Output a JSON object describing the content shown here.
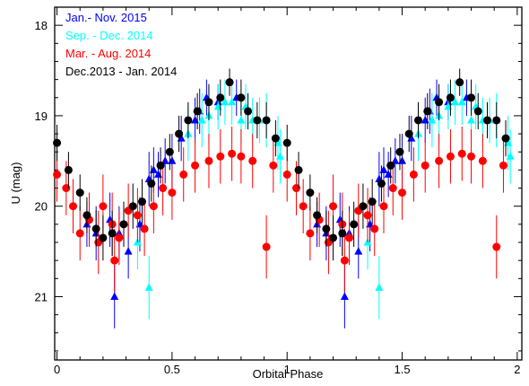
{
  "chart_data": {
    "type": "scatter",
    "xlabel": "Orbital Phase",
    "ylabel": "U (mag)",
    "xlim": [
      -0.01,
      2.02
    ],
    "ylim": [
      21.7,
      17.8
    ],
    "y_inverted": true,
    "x_ticks": [
      0,
      0.5,
      1,
      1.5,
      2
    ],
    "x_tick_labels": [
      "0",
      "0.5",
      "1",
      "1.5",
      "2"
    ],
    "y_ticks": [
      18,
      19,
      20,
      21
    ],
    "y_tick_labels": [
      "18",
      "19",
      "20",
      "21"
    ],
    "legend_position": "top-left",
    "series": [
      {
        "name": "Jan.- Nov. 2015",
        "color": "#0000ff",
        "marker": "triangle",
        "points": [
          {
            "x": 0.13,
            "y": 20.2,
            "err": 0.25
          },
          {
            "x": 0.17,
            "y": 20.3,
            "err": 0.3
          },
          {
            "x": 0.23,
            "y": 20.15,
            "err": 0.3
          },
          {
            "x": 0.25,
            "y": 21.0,
            "err": 0.35
          },
          {
            "x": 0.27,
            "y": 20.3,
            "err": 0.3
          },
          {
            "x": 0.31,
            "y": 20.5,
            "err": 0.3
          },
          {
            "x": 0.36,
            "y": 20.2,
            "err": 0.3
          },
          {
            "x": 0.4,
            "y": 19.7,
            "err": 0.3
          },
          {
            "x": 0.42,
            "y": 19.6,
            "err": 0.25
          },
          {
            "x": 0.44,
            "y": 19.65,
            "err": 0.25
          },
          {
            "x": 0.47,
            "y": 19.5,
            "err": 0.25
          },
          {
            "x": 0.5,
            "y": 19.5,
            "err": 0.3
          },
          {
            "x": 0.54,
            "y": 19.25,
            "err": 0.25
          },
          {
            "x": 0.6,
            "y": 19.05,
            "err": 0.25
          },
          {
            "x": 0.62,
            "y": 18.95,
            "err": 0.25
          },
          {
            "x": 0.65,
            "y": 18.8,
            "err": 0.2
          },
          {
            "x": 0.7,
            "y": 18.85,
            "err": 0.2
          },
          {
            "x": 0.78,
            "y": 18.8,
            "err": 0.2
          }
        ]
      },
      {
        "name": "Sep. - Dec. 2014",
        "color": "#00ffff",
        "marker": "triangle",
        "points": [
          {
            "x": 0.35,
            "y": 20.4,
            "err": 0.3
          },
          {
            "x": 0.4,
            "y": 20.9,
            "err": 0.35
          },
          {
            "x": 0.57,
            "y": 19.2,
            "err": 0.3
          },
          {
            "x": 0.63,
            "y": 19.05,
            "err": 0.3
          },
          {
            "x": 0.66,
            "y": 19.0,
            "err": 0.3
          },
          {
            "x": 0.7,
            "y": 18.9,
            "err": 0.25
          },
          {
            "x": 0.73,
            "y": 18.85,
            "err": 0.25
          },
          {
            "x": 0.76,
            "y": 18.85,
            "err": 0.25
          },
          {
            "x": 0.8,
            "y": 19.05,
            "err": 0.25
          },
          {
            "x": 0.82,
            "y": 18.9,
            "err": 0.25
          },
          {
            "x": 0.85,
            "y": 19.05,
            "err": 0.25
          },
          {
            "x": 0.88,
            "y": 19.05,
            "err": 0.25
          },
          {
            "x": 0.91,
            "y": 19.05,
            "err": 0.3
          },
          {
            "x": 0.96,
            "y": 19.3,
            "err": 0.3
          },
          {
            "x": 0.97,
            "y": 19.45,
            "err": 0.3
          }
        ]
      },
      {
        "name": "Mar. - Aug. 2014",
        "color": "#ff0000",
        "marker": "circle",
        "points": [
          {
            "x": 0.0,
            "y": 19.65,
            "err": 0.3
          },
          {
            "x": 0.04,
            "y": 19.8,
            "err": 0.3
          },
          {
            "x": 0.07,
            "y": 20.0,
            "err": 0.3
          },
          {
            "x": 0.1,
            "y": 20.3,
            "err": 0.3
          },
          {
            "x": 0.14,
            "y": 20.15,
            "err": 0.3
          },
          {
            "x": 0.18,
            "y": 20.4,
            "err": 0.35
          },
          {
            "x": 0.2,
            "y": 20.0,
            "err": 0.35
          },
          {
            "x": 0.24,
            "y": 20.2,
            "err": 0.35
          },
          {
            "x": 0.25,
            "y": 20.6,
            "err": 0.35
          },
          {
            "x": 0.27,
            "y": 20.35,
            "err": 0.3
          },
          {
            "x": 0.31,
            "y": 20.05,
            "err": 0.3
          },
          {
            "x": 0.35,
            "y": 20.1,
            "err": 0.3
          },
          {
            "x": 0.38,
            "y": 20.25,
            "err": 0.3
          },
          {
            "x": 0.42,
            "y": 20.0,
            "err": 0.3
          },
          {
            "x": 0.46,
            "y": 19.8,
            "err": 0.3
          },
          {
            "x": 0.5,
            "y": 19.85,
            "err": 0.3
          },
          {
            "x": 0.55,
            "y": 19.65,
            "err": 0.3
          },
          {
            "x": 0.6,
            "y": 19.55,
            "err": 0.3
          },
          {
            "x": 0.66,
            "y": 19.5,
            "err": 0.3
          },
          {
            "x": 0.71,
            "y": 19.45,
            "err": 0.3
          },
          {
            "x": 0.76,
            "y": 19.42,
            "err": 0.3
          },
          {
            "x": 0.8,
            "y": 19.45,
            "err": 0.3
          },
          {
            "x": 0.85,
            "y": 19.5,
            "err": 0.3
          },
          {
            "x": 0.91,
            "y": 20.45,
            "err": 0.35
          },
          {
            "x": 0.94,
            "y": 19.55,
            "err": 0.3
          }
        ]
      },
      {
        "name": "Dec.2013 - Jan. 2014",
        "color": "#000000",
        "marker": "circle",
        "points": [
          {
            "x": 0.0,
            "y": 19.3,
            "err": 0.2
          },
          {
            "x": 0.05,
            "y": 19.6,
            "err": 0.2
          },
          {
            "x": 0.1,
            "y": 19.85,
            "err": 0.2
          },
          {
            "x": 0.13,
            "y": 20.1,
            "err": 0.2
          },
          {
            "x": 0.17,
            "y": 20.25,
            "err": 0.2
          },
          {
            "x": 0.2,
            "y": 20.35,
            "err": 0.25
          },
          {
            "x": 0.24,
            "y": 20.3,
            "err": 0.25
          },
          {
            "x": 0.29,
            "y": 20.2,
            "err": 0.25
          },
          {
            "x": 0.33,
            "y": 20.0,
            "err": 0.25
          },
          {
            "x": 0.37,
            "y": 19.95,
            "err": 0.25
          },
          {
            "x": 0.41,
            "y": 19.75,
            "err": 0.2
          },
          {
            "x": 0.45,
            "y": 19.55,
            "err": 0.2
          },
          {
            "x": 0.49,
            "y": 19.4,
            "err": 0.2
          },
          {
            "x": 0.53,
            "y": 19.2,
            "err": 0.2
          },
          {
            "x": 0.57,
            "y": 19.05,
            "err": 0.2
          },
          {
            "x": 0.61,
            "y": 18.95,
            "err": 0.2
          },
          {
            "x": 0.66,
            "y": 18.85,
            "err": 0.2
          },
          {
            "x": 0.71,
            "y": 18.8,
            "err": 0.2
          },
          {
            "x": 0.75,
            "y": 18.63,
            "err": 0.15
          },
          {
            "x": 0.8,
            "y": 18.8,
            "err": 0.2
          },
          {
            "x": 0.83,
            "y": 18.95,
            "err": 0.2
          },
          {
            "x": 0.87,
            "y": 19.05,
            "err": 0.2
          },
          {
            "x": 0.91,
            "y": 19.05,
            "err": 0.2
          },
          {
            "x": 0.95,
            "y": 19.25,
            "err": 0.2
          }
        ]
      }
    ]
  }
}
